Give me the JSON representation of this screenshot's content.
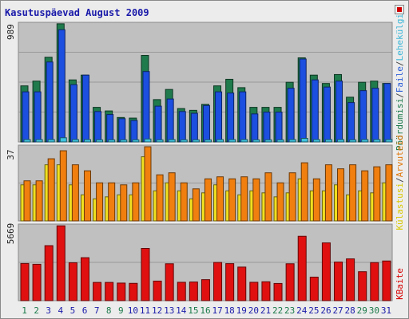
{
  "title": "Kasutuspäevad August 2009",
  "legend": {
    "top": [
      {
        "text": "Pöördumisi",
        "color": "#1a7a4a"
      },
      {
        "text": "/",
        "color": "#444444"
      },
      {
        "text": "Faile",
        "color": "#2d5fd8"
      },
      {
        "text": "/",
        "color": "#444444"
      },
      {
        "text": "Lehekülgi",
        "color": "#3fb8d8"
      }
    ],
    "middle": [
      {
        "text": "Külastusi",
        "color": "#d8c800"
      },
      {
        "text": "/",
        "color": "#444444"
      },
      {
        "text": "Arvuteid",
        "color": "#e07a10"
      }
    ],
    "bottom": [
      {
        "text": "KBaite",
        "color": "#d80000"
      }
    ]
  },
  "colors": {
    "hits": "#1f7a4c",
    "files": "#1c4fe0",
    "pages": "#3fc4e0",
    "visits": "#f0e020",
    "sites": "#f07f10",
    "kbytes": "#e01010",
    "plot_bg": "#c0c0c0",
    "weekend_tick": "#1a7a4a",
    "weekday_tick": "#1a1aaa"
  },
  "chart_data": [
    {
      "type": "bar",
      "ylabel": "989",
      "ymax": 989,
      "categories": [
        "1",
        "2",
        "3",
        "4",
        "5",
        "6",
        "7",
        "8",
        "9",
        "10",
        "11",
        "12",
        "13",
        "14",
        "15",
        "16",
        "17",
        "18",
        "19",
        "20",
        "21",
        "22",
        "23",
        "24",
        "25",
        "26",
        "27",
        "28",
        "29",
        "30",
        "31"
      ],
      "weekend": [
        true,
        true,
        false,
        false,
        false,
        false,
        false,
        true,
        true,
        false,
        false,
        false,
        false,
        false,
        true,
        true,
        false,
        false,
        false,
        false,
        false,
        true,
        true,
        false,
        false,
        false,
        false,
        false,
        true,
        true,
        false
      ],
      "series": [
        {
          "name": "Pöördumisi",
          "values": [
            470,
            510,
            710,
            990,
            520,
            560,
            290,
            260,
            205,
            200,
            725,
            355,
            440,
            280,
            265,
            315,
            470,
            525,
            455,
            290,
            290,
            290,
            500,
            705,
            560,
            490,
            565,
            375,
            500,
            510,
            490
          ]
        },
        {
          "name": "Faile",
          "values": [
            420,
            420,
            670,
            940,
            480,
            560,
            255,
            230,
            195,
            180,
            590,
            300,
            360,
            255,
            240,
            305,
            420,
            410,
            420,
            235,
            250,
            250,
            450,
            695,
            520,
            460,
            510,
            330,
            430,
            450,
            490
          ]
        },
        {
          "name": "Lehekülgi",
          "values": [
            20,
            20,
            20,
            35,
            20,
            20,
            18,
            18,
            18,
            18,
            25,
            18,
            20,
            18,
            18,
            18,
            20,
            20,
            20,
            18,
            18,
            18,
            20,
            30,
            20,
            20,
            20,
            18,
            20,
            20,
            20
          ]
        }
      ]
    },
    {
      "type": "bar",
      "ylabel": "37",
      "ymax": 37,
      "categories": [
        "1",
        "2",
        "3",
        "4",
        "5",
        "6",
        "7",
        "8",
        "9",
        "10",
        "11",
        "12",
        "13",
        "14",
        "15",
        "16",
        "17",
        "18",
        "19",
        "20",
        "21",
        "22",
        "23",
        "24",
        "25",
        "26",
        "27",
        "28",
        "29",
        "30",
        "31"
      ],
      "series": [
        {
          "name": "Külastusi",
          "values": [
            18,
            18,
            28,
            28,
            18,
            13,
            11,
            12,
            13,
            13,
            32,
            15,
            19,
            15,
            11,
            14,
            18,
            15,
            13,
            15,
            14,
            12,
            14,
            21,
            15,
            15,
            18,
            13,
            15,
            14,
            19
          ]
        },
        {
          "name": "Arvuteid",
          "values": [
            20,
            20,
            31,
            35,
            28,
            25,
            19,
            19,
            18,
            19,
            37,
            23,
            24,
            19,
            16,
            21,
            22,
            21,
            22,
            21,
            24,
            19,
            24,
            29,
            21,
            28,
            26,
            28,
            25,
            27,
            28
          ]
        }
      ]
    },
    {
      "type": "bar",
      "ylabel": "5669",
      "ymax": 5669,
      "categories": [
        "1",
        "2",
        "3",
        "4",
        "5",
        "6",
        "7",
        "8",
        "9",
        "10",
        "11",
        "12",
        "13",
        "14",
        "15",
        "16",
        "17",
        "18",
        "19",
        "20",
        "21",
        "22",
        "23",
        "24",
        "25",
        "26",
        "27",
        "28",
        "29",
        "30",
        "31"
      ],
      "series": [
        {
          "name": "KBaite",
          "values": [
            2810,
            2750,
            4160,
            5660,
            2870,
            3250,
            1380,
            1380,
            1330,
            1310,
            3950,
            1480,
            2790,
            1390,
            1410,
            1590,
            2890,
            2800,
            2540,
            1390,
            1430,
            1300,
            2790,
            4870,
            1780,
            4370,
            2920,
            3160,
            2190,
            2880,
            3000
          ]
        }
      ]
    }
  ]
}
